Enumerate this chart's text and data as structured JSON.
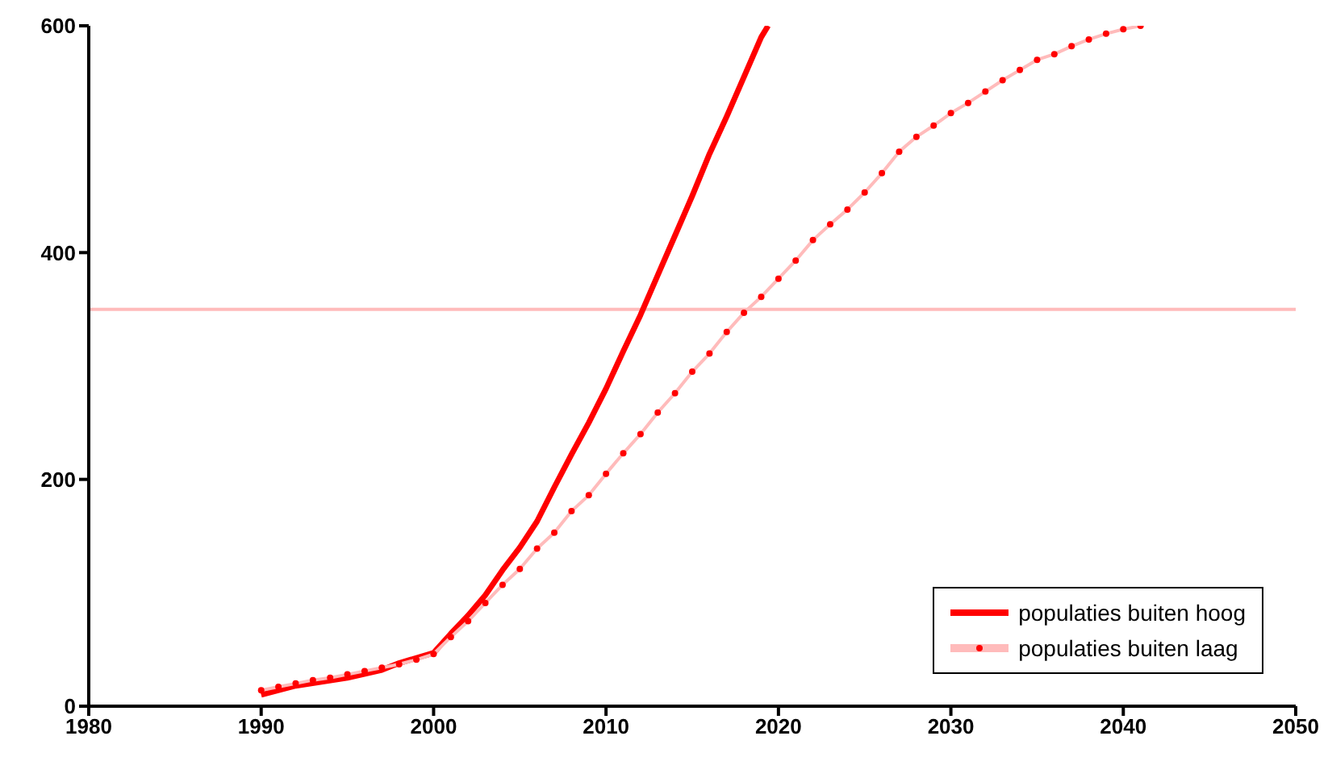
{
  "chart_data": {
    "type": "line",
    "xlim": [
      1980,
      2050
    ],
    "xticks": [
      1980,
      1990,
      2000,
      2010,
      2020,
      2030,
      2040,
      2050
    ],
    "ylim": [
      0,
      600
    ],
    "yticks": [
      0,
      200,
      400,
      600
    ],
    "grid": false,
    "legend": "bottom right",
    "ref_lines": [
      {
        "axis": "y",
        "value": 350,
        "color": "#ffbbbb"
      }
    ],
    "series": [
      {
        "name": "populaties buiten hoog",
        "color": "#ff0000",
        "marker": "none",
        "x": [
          1990,
          1992,
          1995,
          1997,
          1998,
          2000,
          2001,
          2002,
          2003,
          2004,
          2005,
          2006,
          2007,
          2008,
          2009,
          2010,
          2011,
          2012,
          2013,
          2014,
          2015,
          2016,
          2017,
          2018,
          2019,
          2019.4
        ],
        "values": [
          10,
          18,
          25,
          32,
          38,
          47,
          64,
          80,
          98,
          120,
          140,
          163,
          193,
          222,
          250,
          280,
          313,
          345,
          380,
          415,
          450,
          487,
          520,
          555,
          590,
          600
        ]
      },
      {
        "name": "populaties buiten laag",
        "color": "#ffbbbb",
        "marker": "circle",
        "x": [
          1990,
          1991,
          1992,
          1993,
          1994,
          1995,
          1996,
          1997,
          1998,
          1999,
          2000,
          2001,
          2002,
          2003,
          2004,
          2005,
          2006,
          2007,
          2008,
          2009,
          2010,
          2011,
          2012,
          2013,
          2014,
          2015,
          2016,
          2017,
          2018,
          2019,
          2020,
          2021,
          2022,
          2023,
          2024,
          2025,
          2026,
          2027,
          2028,
          2029,
          2030,
          2031,
          2032,
          2033,
          2034,
          2035,
          2036,
          2037,
          2038,
          2039,
          2040,
          2041
        ],
        "values": [
          14,
          17,
          20,
          23,
          25,
          28,
          31,
          34,
          37,
          41,
          46,
          61,
          75,
          91,
          107,
          121,
          139,
          153,
          172,
          186,
          205,
          223,
          240,
          259,
          276,
          295,
          311,
          330,
          347,
          361,
          377,
          393,
          411,
          425,
          438,
          453,
          470,
          489,
          502,
          512,
          523,
          532,
          542,
          552,
          561,
          570,
          575,
          582,
          588,
          593,
          597,
          600
        ]
      }
    ]
  }
}
